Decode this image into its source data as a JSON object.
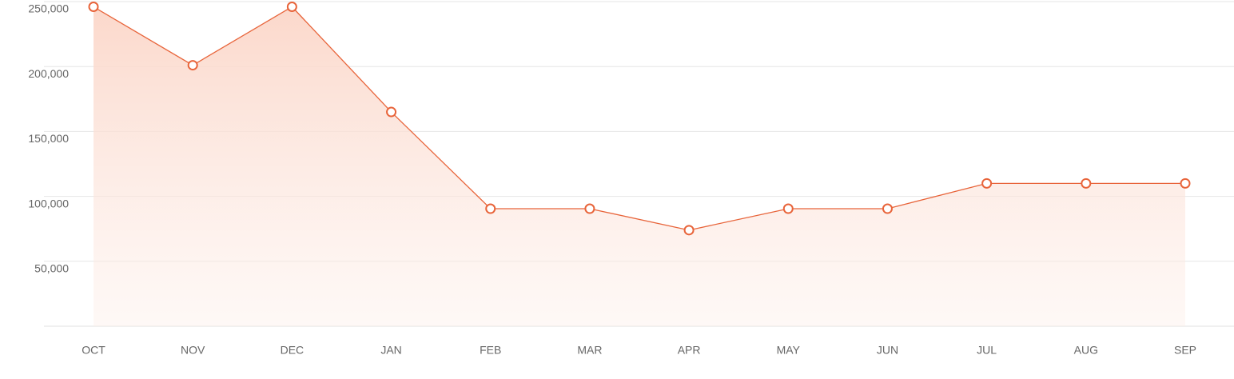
{
  "chart_data": {
    "type": "area",
    "categories": [
      "OCT",
      "NOV",
      "DEC",
      "JAN",
      "FEB",
      "MAR",
      "APR",
      "MAY",
      "JUN",
      "JUL",
      "AUG",
      "SEP"
    ],
    "values": [
      246000,
      201000,
      246000,
      165000,
      90500,
      90500,
      74000,
      90500,
      90500,
      110000,
      110000,
      110000
    ],
    "color": "#e8643a",
    "ylim": [
      0,
      250000
    ],
    "yticks": [
      {
        "value": 50000,
        "label": "50,000"
      },
      {
        "value": 100000,
        "label": "100,000"
      },
      {
        "value": 150000,
        "label": "150,000"
      },
      {
        "value": 200000,
        "label": "200,000"
      },
      {
        "value": 250000,
        "label": "250,000"
      }
    ],
    "grid": true
  }
}
